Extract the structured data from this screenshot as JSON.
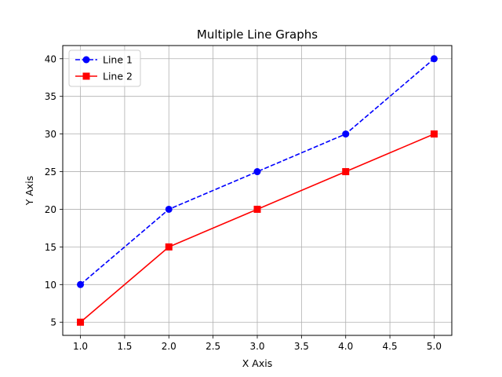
{
  "chart_data": {
    "type": "line",
    "title": "Multiple Line Graphs",
    "xlabel": "X Axis",
    "ylabel": "Y Axis",
    "xlim": [
      0.8,
      5.2
    ],
    "ylim": [
      3.25,
      41.75
    ],
    "x_ticks": [
      1.0,
      1.5,
      2.0,
      2.5,
      3.0,
      3.5,
      4.0,
      4.5,
      5.0
    ],
    "y_ticks": [
      5,
      10,
      15,
      20,
      25,
      30,
      35,
      40
    ],
    "x_tick_labels": [
      "1.0",
      "1.5",
      "2.0",
      "2.5",
      "3.0",
      "3.5",
      "4.0",
      "4.5",
      "5.0"
    ],
    "y_tick_labels": [
      "5",
      "10",
      "15",
      "20",
      "25",
      "30",
      "35",
      "40"
    ],
    "grid": true,
    "legend_position": "upper-left",
    "series": [
      {
        "name": "Line 1",
        "x": [
          1,
          2,
          3,
          4,
          5
        ],
        "values": [
          10,
          20,
          25,
          30,
          40
        ],
        "color": "#0000ff",
        "line_style": "dashed",
        "marker": "circle"
      },
      {
        "name": "Line 2",
        "x": [
          1,
          2,
          3,
          4,
          5
        ],
        "values": [
          5,
          15,
          20,
          25,
          30
        ],
        "color": "#ff0000",
        "line_style": "solid",
        "marker": "square"
      }
    ]
  }
}
